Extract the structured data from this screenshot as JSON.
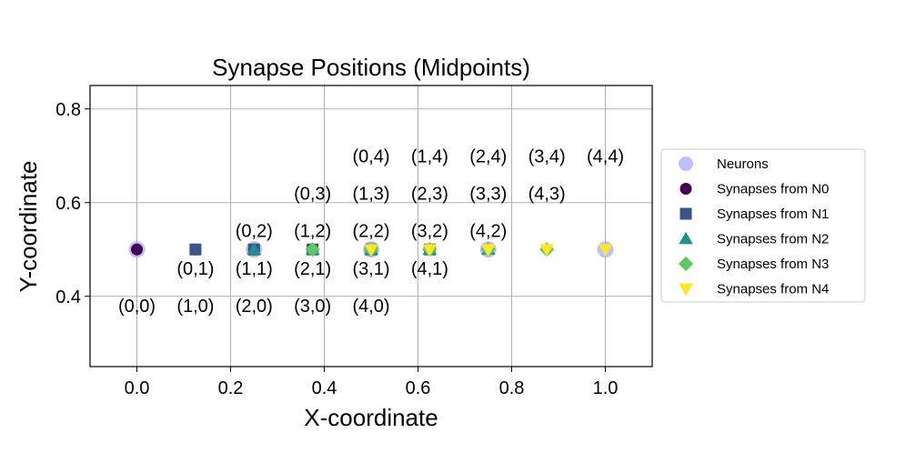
{
  "chart_data": {
    "type": "scatter",
    "title": "Synapse Positions (Midpoints)",
    "xlabel": "X-coordinate",
    "ylabel": "Y-coordinate",
    "xlim": [
      -0.1,
      1.1
    ],
    "ylim": [
      0.25,
      0.85
    ],
    "xticks": [
      0.0,
      0.2,
      0.4,
      0.6,
      0.8,
      1.0
    ],
    "xtick_labels": [
      "0.0",
      "0.2",
      "0.4",
      "0.6",
      "0.8",
      "1.0"
    ],
    "yticks": [
      0.4,
      0.6,
      0.8
    ],
    "ytick_labels": [
      "0.4",
      "0.6",
      "0.8"
    ],
    "grid": true,
    "legend_position": "outside-right",
    "series": [
      {
        "name": "Neurons",
        "marker": "circle",
        "color": "#aaaaff",
        "points": [
          [
            0.0,
            0.5
          ],
          [
            0.25,
            0.5
          ],
          [
            0.5,
            0.5
          ],
          [
            0.75,
            0.5
          ],
          [
            1.0,
            0.5
          ]
        ]
      },
      {
        "name": "Synapses from N0",
        "marker": "circle",
        "color": "#440154",
        "points": [
          [
            0.0,
            0.5
          ],
          [
            0.125,
            0.5
          ],
          [
            0.25,
            0.5
          ],
          [
            0.375,
            0.5
          ],
          [
            0.5,
            0.5
          ]
        ]
      },
      {
        "name": "Synapses from N1",
        "marker": "square",
        "color": "#3b528b",
        "points": [
          [
            0.125,
            0.5
          ],
          [
            0.25,
            0.5
          ],
          [
            0.375,
            0.5
          ],
          [
            0.5,
            0.5
          ],
          [
            0.625,
            0.5
          ]
        ]
      },
      {
        "name": "Synapses from N2",
        "marker": "triangle-up",
        "color": "#21918c",
        "points": [
          [
            0.25,
            0.5
          ],
          [
            0.375,
            0.5
          ],
          [
            0.5,
            0.5
          ],
          [
            0.625,
            0.5
          ],
          [
            0.75,
            0.5
          ]
        ]
      },
      {
        "name": "Synapses from N3",
        "marker": "diamond",
        "color": "#5ec962",
        "points": [
          [
            0.375,
            0.5
          ],
          [
            0.5,
            0.5
          ],
          [
            0.625,
            0.5
          ],
          [
            0.75,
            0.5
          ],
          [
            0.875,
            0.5
          ]
        ]
      },
      {
        "name": "Synapses from N4",
        "marker": "triangle-down",
        "color": "#fde725",
        "points": [
          [
            0.5,
            0.5
          ],
          [
            0.625,
            0.5
          ],
          [
            0.75,
            0.5
          ],
          [
            0.875,
            0.5
          ],
          [
            1.0,
            0.5
          ]
        ]
      }
    ],
    "annotations": [
      {
        "text": "(0,0)",
        "x": 0.0,
        "y": 0.38
      },
      {
        "text": "(1,0)",
        "x": 0.125,
        "y": 0.38
      },
      {
        "text": "(2,0)",
        "x": 0.25,
        "y": 0.38
      },
      {
        "text": "(3,0)",
        "x": 0.375,
        "y": 0.38
      },
      {
        "text": "(4,0)",
        "x": 0.5,
        "y": 0.38
      },
      {
        "text": "(0,1)",
        "x": 0.125,
        "y": 0.46
      },
      {
        "text": "(1,1)",
        "x": 0.25,
        "y": 0.46
      },
      {
        "text": "(2,1)",
        "x": 0.375,
        "y": 0.46
      },
      {
        "text": "(3,1)",
        "x": 0.5,
        "y": 0.46
      },
      {
        "text": "(4,1)",
        "x": 0.625,
        "y": 0.46
      },
      {
        "text": "(0,2)",
        "x": 0.25,
        "y": 0.54
      },
      {
        "text": "(1,2)",
        "x": 0.375,
        "y": 0.54
      },
      {
        "text": "(2,2)",
        "x": 0.5,
        "y": 0.54
      },
      {
        "text": "(3,2)",
        "x": 0.625,
        "y": 0.54
      },
      {
        "text": "(4,2)",
        "x": 0.75,
        "y": 0.54
      },
      {
        "text": "(0,3)",
        "x": 0.375,
        "y": 0.62
      },
      {
        "text": "(1,3)",
        "x": 0.5,
        "y": 0.62
      },
      {
        "text": "(2,3)",
        "x": 0.625,
        "y": 0.62
      },
      {
        "text": "(3,3)",
        "x": 0.75,
        "y": 0.62
      },
      {
        "text": "(4,3)",
        "x": 0.875,
        "y": 0.62
      },
      {
        "text": "(0,4)",
        "x": 0.5,
        "y": 0.7
      },
      {
        "text": "(1,4)",
        "x": 0.625,
        "y": 0.7
      },
      {
        "text": "(2,4)",
        "x": 0.75,
        "y": 0.7
      },
      {
        "text": "(3,4)",
        "x": 0.875,
        "y": 0.7
      },
      {
        "text": "(4,4)",
        "x": 1.0,
        "y": 0.7
      }
    ]
  }
}
